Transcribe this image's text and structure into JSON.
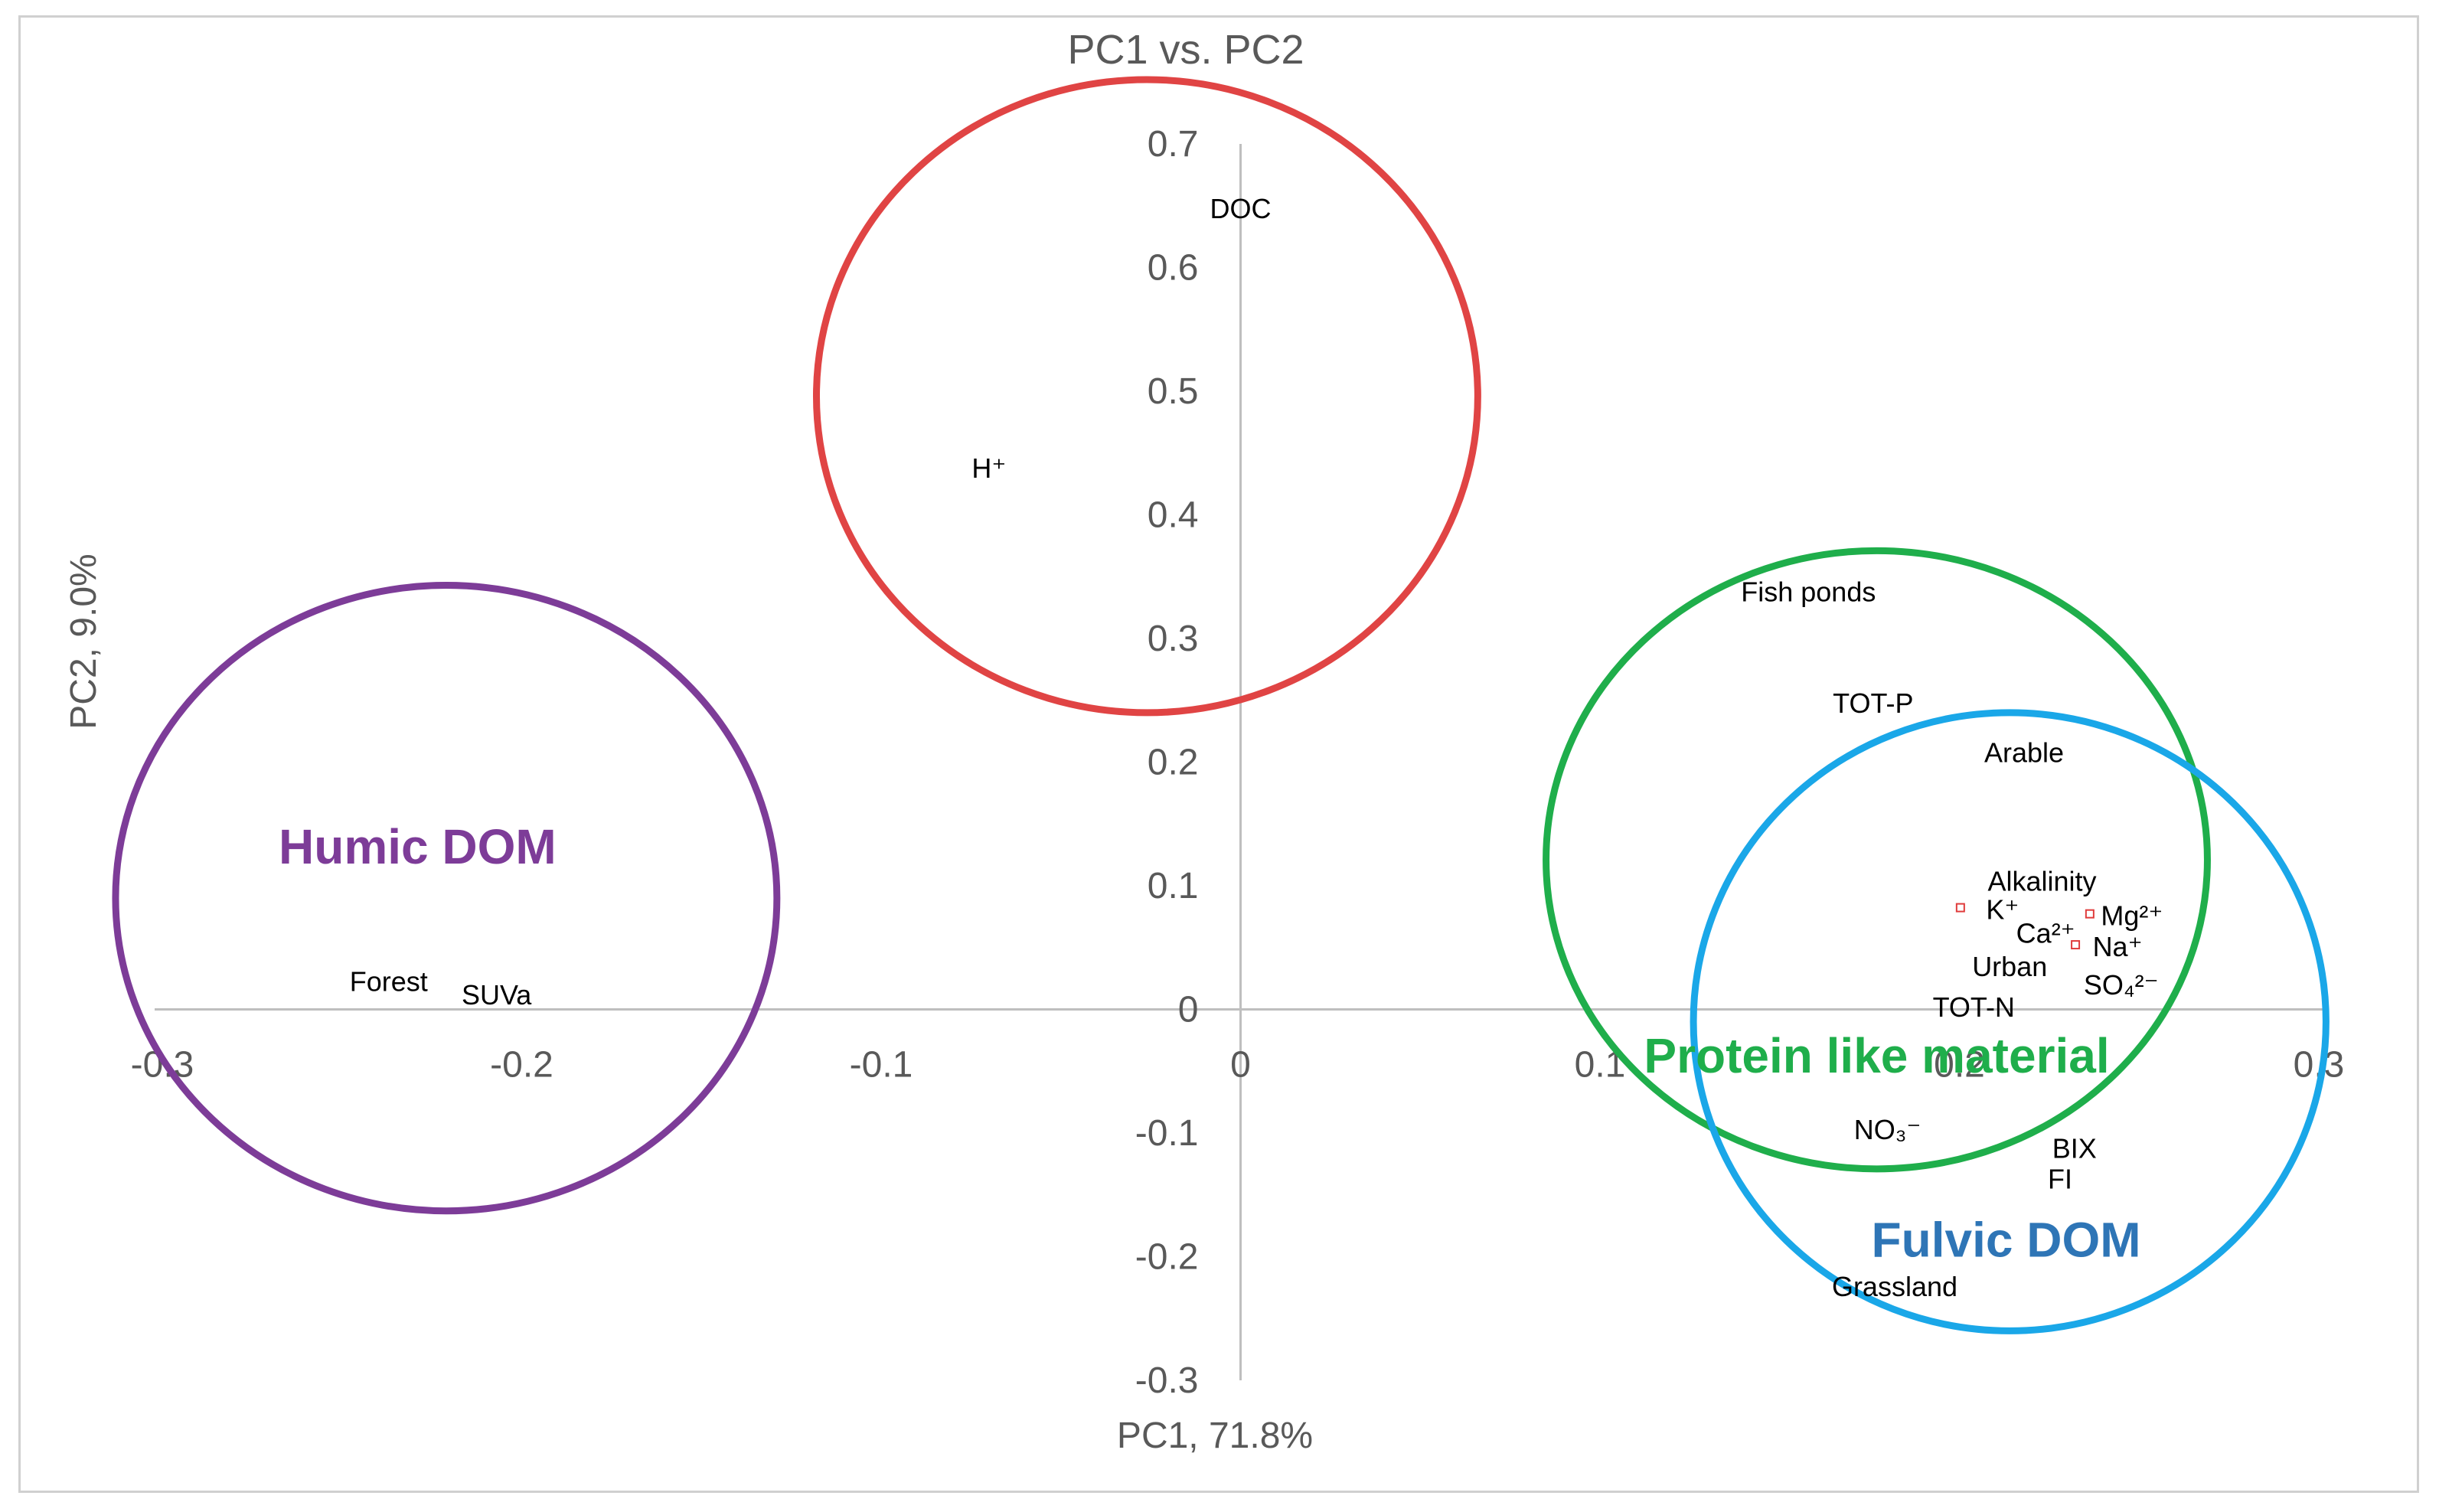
{
  "chart_data": {
    "type": "scatter",
    "title": "PC1 vs. PC2",
    "xlabel": "PC1, 71.8%",
    "ylabel": "PC2, 9.0%",
    "xlim": [
      -0.3,
      0.3
    ],
    "ylim": [
      -0.3,
      0.7
    ],
    "x_ticks": [
      "-0.3",
      "-0.2",
      "-0.1",
      "0",
      "0.1",
      "0.2",
      "0.3"
    ],
    "y_ticks": [
      "0.7",
      "0.6",
      "0.5",
      "0.4",
      "0.3",
      "0.2",
      "0.1",
      "0",
      "-0.1",
      "-0.2",
      "-0.3"
    ],
    "grid": false,
    "colors": {
      "axis": "#bfbfbf",
      "text": "#595959",
      "marker": "#e03c3c",
      "urban": "#c0504d",
      "humic": "#7d3c98",
      "dom_cluster": "#e04444",
      "protein": "#1fae4b",
      "fulvic": "#1aa7e8",
      "fulvic_label": "#2e75b6"
    },
    "points": [
      {
        "label": "DOC",
        "x": 0.0,
        "y": 0.64
      },
      {
        "label": "H⁺",
        "x": -0.07,
        "y": 0.43
      },
      {
        "label": "Fish ponds",
        "x": 0.158,
        "y": 0.33
      },
      {
        "label": "TOT-P",
        "x": 0.176,
        "y": 0.24
      },
      {
        "label": "Arable",
        "x": 0.218,
        "y": 0.2
      },
      {
        "label": "Alkalinity",
        "x": 0.223,
        "y": 0.096
      },
      {
        "label": "K⁺",
        "x": 0.212,
        "y": 0.073
      },
      {
        "label": "Mg²⁺",
        "x": 0.248,
        "y": 0.068
      },
      {
        "label": "Ca²⁺",
        "x": 0.224,
        "y": 0.054
      },
      {
        "label": "Na⁺",
        "x": 0.244,
        "y": 0.043
      },
      {
        "label": "Urban",
        "x": 0.214,
        "y": 0.027
      },
      {
        "label": "SO₄²⁻",
        "x": 0.245,
        "y": 0.012
      },
      {
        "label": "TOT-N",
        "x": 0.204,
        "y": -0.006
      },
      {
        "label": "NO₃⁻",
        "x": 0.18,
        "y": -0.105
      },
      {
        "label": "BIX",
        "x": 0.232,
        "y": -0.12
      },
      {
        "label": "FI",
        "x": 0.228,
        "y": -0.145
      },
      {
        "label": "Grassland",
        "x": 0.182,
        "y": -0.232
      },
      {
        "label": "Forest",
        "x": -0.237,
        "y": 0.015
      },
      {
        "label": "SUVa",
        "x": -0.207,
        "y": 0.004
      }
    ],
    "groups": [
      {
        "name": "Humic DOM",
        "cx": -0.221,
        "cy": 0.09,
        "rx": 0.092,
        "ry": 0.253,
        "label_x": -0.229,
        "label_y": 0.118
      },
      {
        "name": "",
        "cx": -0.026,
        "cy": 0.496,
        "rx": 0.092,
        "ry": 0.256,
        "label_x": 0,
        "label_y": 0
      },
      {
        "name": "Protein like material",
        "cx": 0.177,
        "cy": 0.121,
        "rx": 0.092,
        "ry": 0.25,
        "label_x": 0.177,
        "label_y": -0.051
      },
      {
        "name": "Fulvic DOM",
        "cx": 0.214,
        "cy": -0.01,
        "rx": 0.088,
        "ry": 0.25,
        "label_x": 0.213,
        "label_y": -0.2
      }
    ]
  }
}
